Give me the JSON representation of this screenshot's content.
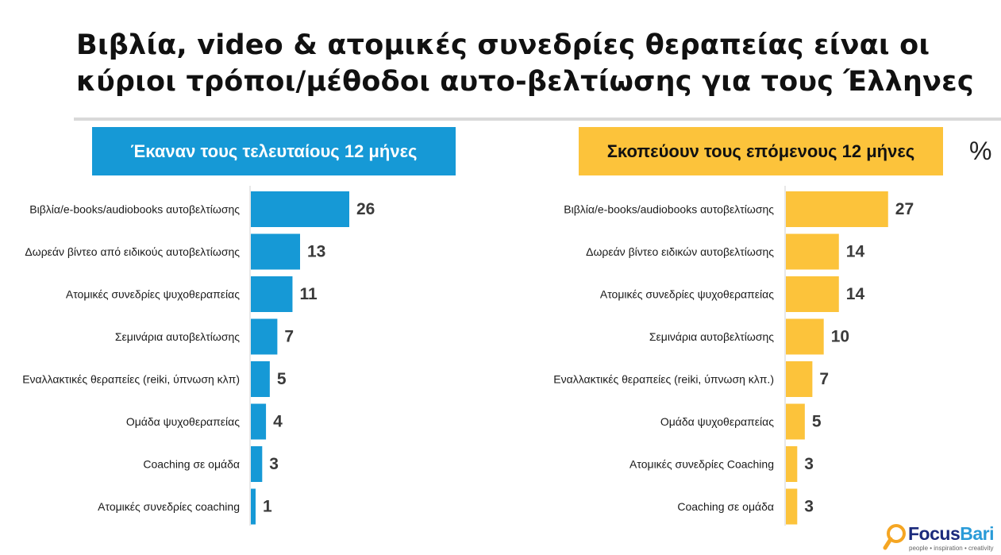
{
  "title": {
    "line1": "Βιβλία, video & ατομικές συνεδρίες θεραπείας είναι οι",
    "line2": "κύριοι τρόποι/μέθοδοι αυτο-βελτίωσης για τους Έλληνες"
  },
  "unit_label": "%",
  "logo": {
    "name_part1": "Focus",
    "name_part2": "Bari",
    "tagline": "people • inspiration • creativity"
  },
  "colors": {
    "left_accent": "#1699d6",
    "right_accent": "#fcc33b",
    "value_text": "#3a3a3a"
  },
  "chart_data": [
    {
      "type": "bar",
      "orientation": "horizontal",
      "title": "Έκαναν τους τελευταίους 12 μήνες",
      "categories": [
        "Βιβλία/e-books/audiobooks αυτοβελτίωσης",
        "Δωρεάν βίντεο από ειδικούς αυτοβελτίωσης",
        "Ατομικές συνεδρίες ψυχοθεραπείας",
        "Σεμινάρια αυτοβελτίωσης",
        "Εναλλακτικές θεραπείες (reiki, ύπνωση κλπ)",
        "Ομάδα ψυχοθεραπείας",
        "Coaching σε ομάδα",
        "Ατομικές συνεδρίες coaching"
      ],
      "values": [
        26,
        13,
        11,
        7,
        5,
        4,
        3,
        1
      ],
      "color": "#1699d6"
    },
    {
      "type": "bar",
      "orientation": "horizontal",
      "title": "Σκοπεύουν τους επόμενους 12 μήνες",
      "categories": [
        "Βιβλία/e-books/audiobooks αυτοβελτίωσης",
        "Δωρεάν βίντεο ειδικών αυτοβελτίωσης",
        "Ατομικές συνεδρίες ψυχοθεραπείας",
        "Σεμινάρια αυτοβελτίωσης",
        "Εναλλακτικές θεραπείες (reiki, ύπνωση κλπ.)",
        "Ομάδα ψυχοθεραπείας",
        "Ατομικές συνεδρίες Coaching",
        "Coaching σε ομάδα"
      ],
      "values": [
        27,
        14,
        14,
        10,
        7,
        5,
        3,
        3
      ],
      "color": "#fcc33b"
    }
  ]
}
